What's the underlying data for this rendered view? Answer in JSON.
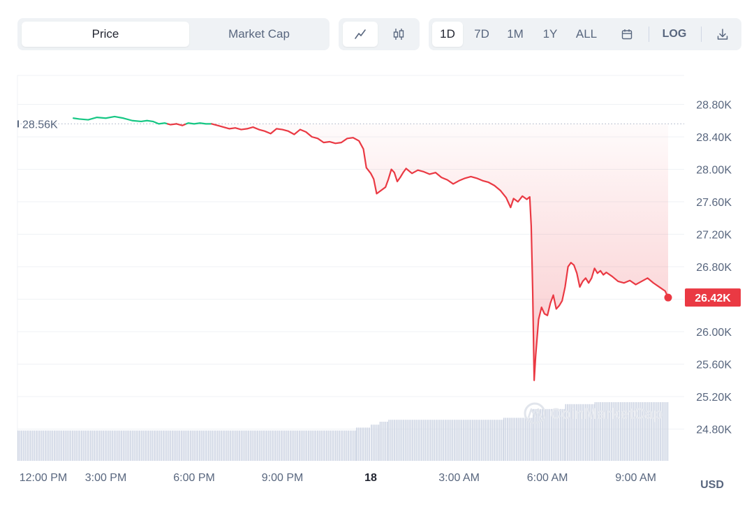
{
  "toolbar": {
    "metric_tabs": [
      {
        "label": "Price",
        "active": true
      },
      {
        "label": "Market Cap",
        "active": false
      }
    ],
    "chart_type_icons": [
      "line-chart-icon",
      "candlestick-icon"
    ],
    "ranges": [
      {
        "label": "1D",
        "active": true
      },
      {
        "label": "7D",
        "active": false
      },
      {
        "label": "1M",
        "active": false
      },
      {
        "label": "1Y",
        "active": false
      },
      {
        "label": "ALL",
        "active": false
      }
    ],
    "calendar_icon": "calendar-icon",
    "log_label": "LOG",
    "download_icon": "download-icon"
  },
  "watermark": "CoinMarketCap",
  "colors": {
    "up": "#16c784",
    "down": "#ea3943",
    "grid": "#eff2f5",
    "volume": "#cfd6e4",
    "axis_text": "#58667e"
  },
  "chart_data": {
    "type": "line",
    "currency_label": "USD",
    "open_label": "28.56K",
    "open_value": 28.56,
    "current_label": "26.42K",
    "current_value": 26.42,
    "y_ticks": [
      {
        "v": 28.8,
        "label": "28.80K"
      },
      {
        "v": 28.4,
        "label": "28.40K"
      },
      {
        "v": 28.0,
        "label": "28.00K"
      },
      {
        "v": 27.6,
        "label": "27.60K"
      },
      {
        "v": 27.2,
        "label": "27.20K"
      },
      {
        "v": 26.8,
        "label": "26.80K"
      },
      {
        "v": 26.4,
        "label": ""
      },
      {
        "v": 26.0,
        "label": "26.00K"
      },
      {
        "v": 25.6,
        "label": "25.60K"
      },
      {
        "v": 25.2,
        "label": "25.20K"
      },
      {
        "v": 24.8,
        "label": "24.80K"
      }
    ],
    "x_ticks": [
      {
        "t": 12,
        "label": "12:00 PM",
        "bold": false
      },
      {
        "t": 15,
        "label": "3:00 PM",
        "bold": false
      },
      {
        "t": 18,
        "label": "6:00 PM",
        "bold": false
      },
      {
        "t": 21,
        "label": "9:00 PM",
        "bold": false
      },
      {
        "t": 24,
        "label": "18",
        "bold": true
      },
      {
        "t": 27,
        "label": "3:00 AM",
        "bold": false
      },
      {
        "t": 30,
        "label": "6:00 AM",
        "bold": false
      },
      {
        "t": 33,
        "label": "9:00 AM",
        "bold": false
      }
    ],
    "series": [
      {
        "values": [
          [
            13.9,
            28.63
          ],
          [
            14.1,
            28.62
          ],
          [
            14.4,
            28.61
          ],
          [
            14.7,
            28.64
          ],
          [
            15.0,
            28.63
          ],
          [
            15.3,
            28.65
          ],
          [
            15.6,
            28.63
          ],
          [
            15.9,
            28.6
          ],
          [
            16.2,
            28.59
          ],
          [
            16.4,
            28.6
          ],
          [
            16.6,
            28.59
          ],
          [
            16.8,
            28.56
          ],
          [
            17.0,
            28.57
          ],
          [
            17.2,
            28.55
          ],
          [
            17.4,
            28.56
          ],
          [
            17.6,
            28.54
          ],
          [
            17.8,
            28.57
          ],
          [
            18.0,
            28.56
          ],
          [
            18.2,
            28.57
          ],
          [
            18.4,
            28.56
          ],
          [
            18.6,
            28.56
          ],
          [
            18.8,
            28.54
          ],
          [
            19.0,
            28.52
          ],
          [
            19.2,
            28.5
          ],
          [
            19.4,
            28.51
          ],
          [
            19.6,
            28.49
          ],
          [
            19.8,
            28.5
          ],
          [
            20.0,
            28.52
          ],
          [
            20.2,
            28.49
          ],
          [
            20.4,
            28.47
          ],
          [
            20.6,
            28.44
          ],
          [
            20.8,
            28.5
          ],
          [
            21.0,
            28.49
          ],
          [
            21.2,
            28.47
          ],
          [
            21.4,
            28.43
          ],
          [
            21.6,
            28.49
          ],
          [
            21.8,
            28.46
          ],
          [
            22.0,
            28.4
          ],
          [
            22.2,
            28.38
          ],
          [
            22.4,
            28.33
          ],
          [
            22.6,
            28.34
          ],
          [
            22.8,
            28.32
          ],
          [
            23.0,
            28.33
          ],
          [
            23.2,
            28.38
          ],
          [
            23.4,
            28.39
          ],
          [
            23.6,
            28.35
          ],
          [
            23.75,
            28.25
          ],
          [
            23.85,
            28.02
          ],
          [
            24.0,
            27.95
          ],
          [
            24.1,
            27.88
          ],
          [
            24.2,
            27.7
          ],
          [
            24.35,
            27.74
          ],
          [
            24.5,
            27.78
          ],
          [
            24.6,
            27.88
          ],
          [
            24.7,
            28.0
          ],
          [
            24.8,
            27.96
          ],
          [
            24.9,
            27.85
          ],
          [
            25.0,
            27.9
          ],
          [
            25.1,
            27.96
          ],
          [
            25.2,
            28.01
          ],
          [
            25.4,
            27.95
          ],
          [
            25.6,
            27.99
          ],
          [
            25.8,
            27.97
          ],
          [
            26.0,
            27.94
          ],
          [
            26.2,
            27.96
          ],
          [
            26.4,
            27.9
          ],
          [
            26.6,
            27.87
          ],
          [
            26.8,
            27.82
          ],
          [
            27.0,
            27.86
          ],
          [
            27.2,
            27.89
          ],
          [
            27.4,
            27.91
          ],
          [
            27.6,
            27.89
          ],
          [
            27.8,
            27.86
          ],
          [
            28.0,
            27.84
          ],
          [
            28.2,
            27.8
          ],
          [
            28.4,
            27.74
          ],
          [
            28.6,
            27.65
          ],
          [
            28.75,
            27.53
          ],
          [
            28.85,
            27.64
          ],
          [
            29.0,
            27.6
          ],
          [
            29.15,
            27.67
          ],
          [
            29.3,
            27.63
          ],
          [
            29.4,
            27.66
          ],
          [
            29.45,
            27.3
          ],
          [
            29.5,
            26.5
          ],
          [
            29.55,
            25.4
          ],
          [
            29.6,
            25.7
          ],
          [
            29.7,
            26.15
          ],
          [
            29.8,
            26.3
          ],
          [
            29.9,
            26.22
          ],
          [
            30.0,
            26.2
          ],
          [
            30.1,
            26.35
          ],
          [
            30.2,
            26.45
          ],
          [
            30.3,
            26.28
          ],
          [
            30.4,
            26.32
          ],
          [
            30.5,
            26.38
          ],
          [
            30.6,
            26.55
          ],
          [
            30.7,
            26.8
          ],
          [
            30.8,
            26.85
          ],
          [
            30.9,
            26.82
          ],
          [
            31.0,
            26.72
          ],
          [
            31.1,
            26.55
          ],
          [
            31.2,
            26.62
          ],
          [
            31.3,
            26.66
          ],
          [
            31.4,
            26.6
          ],
          [
            31.5,
            26.66
          ],
          [
            31.6,
            26.78
          ],
          [
            31.7,
            26.72
          ],
          [
            31.8,
            26.75
          ],
          [
            31.9,
            26.7
          ],
          [
            32.0,
            26.73
          ],
          [
            32.2,
            26.68
          ],
          [
            32.4,
            26.62
          ],
          [
            32.6,
            26.6
          ],
          [
            32.8,
            26.63
          ],
          [
            33.0,
            26.58
          ],
          [
            33.2,
            26.62
          ],
          [
            33.4,
            26.66
          ],
          [
            33.6,
            26.6
          ],
          [
            33.8,
            26.55
          ],
          [
            34.0,
            26.5
          ],
          [
            34.1,
            26.42
          ]
        ]
      }
    ],
    "volume": [
      {
        "from": 12.0,
        "to": 23.5,
        "level": 0.31
      },
      {
        "from": 23.5,
        "to": 24.0,
        "level": 0.34
      },
      {
        "from": 24.0,
        "to": 24.3,
        "level": 0.37
      },
      {
        "from": 24.3,
        "to": 24.6,
        "level": 0.4
      },
      {
        "from": 24.6,
        "to": 28.5,
        "level": 0.42
      },
      {
        "from": 28.5,
        "to": 29.5,
        "level": 0.44
      },
      {
        "from": 29.5,
        "to": 30.6,
        "level": 0.53
      },
      {
        "from": 30.6,
        "to": 31.6,
        "level": 0.58
      },
      {
        "from": 31.6,
        "to": 34.1,
        "level": 0.6
      }
    ],
    "x_range": [
      12,
      34.1
    ],
    "ylim": [
      24.4,
      29.2
    ],
    "grid": true
  }
}
